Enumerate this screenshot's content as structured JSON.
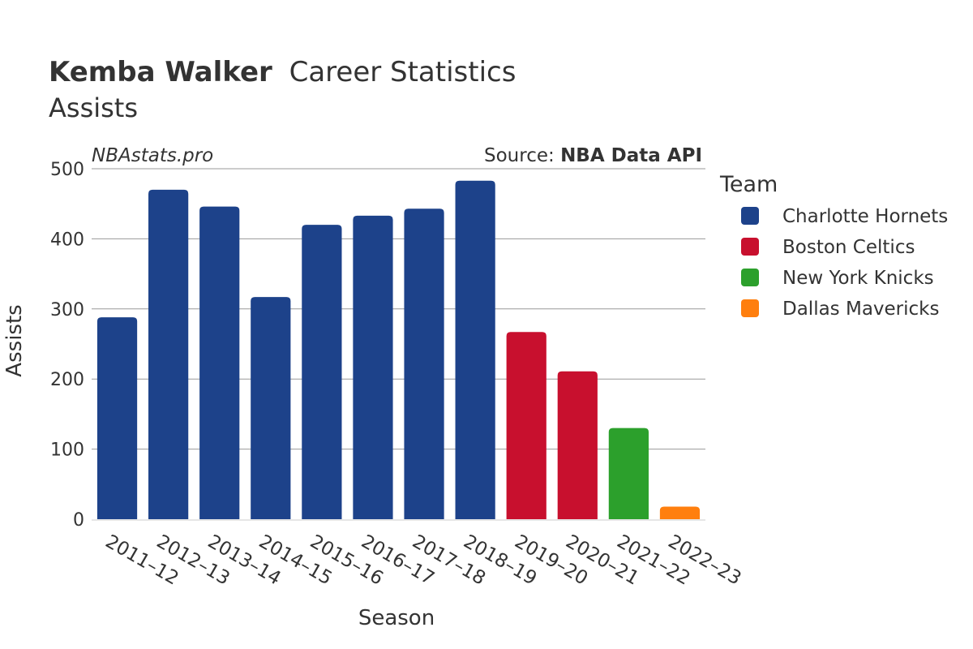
{
  "chart_data": {
    "type": "bar",
    "title_bold": "Kemba Walker",
    "title_rest": "Career Statistics",
    "subtitle": "Assists",
    "watermark": "NBAstats.pro",
    "source_prefix": "Source: ",
    "source_name": "NBA Data API",
    "xlabel": "Season",
    "ylabel": "Assists",
    "ylim": [
      0,
      500
    ],
    "yticks": [
      0,
      100,
      200,
      300,
      400,
      500
    ],
    "grid": true,
    "legend_title": "Team",
    "legend_position": "right",
    "categories": [
      "2011–12",
      "2012–13",
      "2013–14",
      "2014–15",
      "2015–16",
      "2016–17",
      "2017–18",
      "2018–19",
      "2019–20",
      "2020–21",
      "2021–22",
      "2022–23"
    ],
    "values": [
      288,
      470,
      446,
      317,
      420,
      433,
      443,
      483,
      267,
      211,
      130,
      18
    ],
    "teams": [
      "Charlotte Hornets",
      "Charlotte Hornets",
      "Charlotte Hornets",
      "Charlotte Hornets",
      "Charlotte Hornets",
      "Charlotte Hornets",
      "Charlotte Hornets",
      "Charlotte Hornets",
      "Boston Celtics",
      "Boston Celtics",
      "New York Knicks",
      "Dallas Mavericks"
    ],
    "legend": [
      {
        "name": "Charlotte Hornets",
        "color": "#1d428a"
      },
      {
        "name": "Boston Celtics",
        "color": "#c8102e"
      },
      {
        "name": "New York Knicks",
        "color": "#2ca02c"
      },
      {
        "name": "Dallas Mavericks",
        "color": "#ff7f0e"
      }
    ]
  }
}
